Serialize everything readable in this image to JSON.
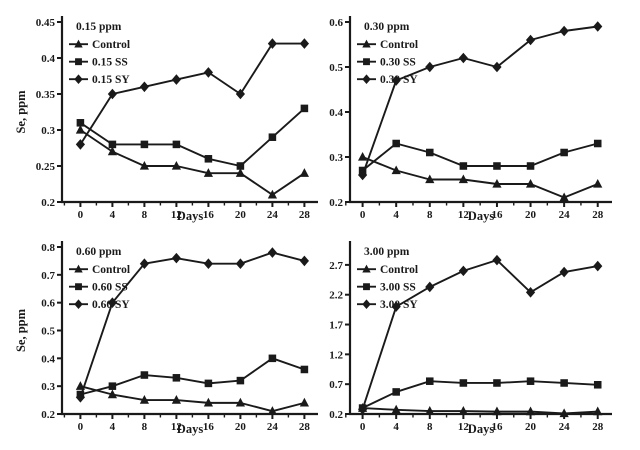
{
  "figure": {
    "name": "Se accumulation in treatments over time",
    "background_color": "#ffffff",
    "ink_color": "#1a1a1a",
    "shared_xlabel": "Days",
    "shared_ylabel": "Se, ppm"
  },
  "chart_data": [
    {
      "panel": "top-left",
      "type": "line",
      "title": "0.15 ppm",
      "xlabel": "Days",
      "ylabel": "Se, ppm",
      "x": [
        0,
        4,
        8,
        12,
        16,
        20,
        24,
        28
      ],
      "xticks": [
        "0",
        "4",
        "8",
        "12",
        "16",
        "20",
        "24",
        "28"
      ],
      "yticks": [
        "0.2",
        "0.25",
        "0.3",
        "0.35",
        "0.4",
        "0.45"
      ],
      "ylim": [
        0.2,
        0.45
      ],
      "grid": false,
      "legend_position": "inside-top-left",
      "series": [
        {
          "name": "Control",
          "marker": "triangle",
          "values": [
            0.3,
            0.27,
            0.25,
            0.25,
            0.24,
            0.24,
            0.21,
            0.24
          ]
        },
        {
          "name": "0.15 SS",
          "marker": "square",
          "values": [
            0.31,
            0.28,
            0.28,
            0.28,
            0.26,
            0.25,
            0.29,
            0.33
          ]
        },
        {
          "name": "0.15 SY",
          "marker": "diamond",
          "values": [
            0.28,
            0.35,
            0.36,
            0.37,
            0.38,
            0.35,
            0.42,
            0.42
          ]
        }
      ]
    },
    {
      "panel": "top-right",
      "type": "line",
      "title": "0.30 ppm",
      "xlabel": "Days",
      "ylabel": "",
      "x": [
        0,
        4,
        8,
        12,
        16,
        20,
        24,
        28
      ],
      "xticks": [
        "0",
        "4",
        "8",
        "12",
        "16",
        "20",
        "24",
        "28"
      ],
      "yticks": [
        "0.2",
        "0.3",
        "0.4",
        "0.5",
        "0.6"
      ],
      "ylim": [
        0.2,
        0.6
      ],
      "grid": false,
      "legend_position": "inside-top-left",
      "series": [
        {
          "name": "Control",
          "marker": "triangle",
          "values": [
            0.3,
            0.27,
            0.25,
            0.25,
            0.24,
            0.24,
            0.21,
            0.24
          ]
        },
        {
          "name": "0.30 SS",
          "marker": "square",
          "values": [
            0.27,
            0.33,
            0.31,
            0.28,
            0.28,
            0.28,
            0.31,
            0.33
          ]
        },
        {
          "name": "0.30 SY",
          "marker": "diamond",
          "values": [
            0.26,
            0.47,
            0.5,
            0.52,
            0.5,
            0.56,
            0.58,
            0.59
          ]
        }
      ]
    },
    {
      "panel": "bottom-left",
      "type": "line",
      "title": "0.60 ppm",
      "xlabel": "Days",
      "ylabel": "Se, ppm",
      "x": [
        0,
        4,
        8,
        12,
        16,
        20,
        24,
        28
      ],
      "xticks": [
        "0",
        "4",
        "8",
        "12",
        "16",
        "20",
        "24",
        "28"
      ],
      "yticks": [
        "0.2",
        "0.3",
        "0.4",
        "0.5",
        "0.6",
        "0.7",
        "0.8"
      ],
      "ylim": [
        0.2,
        0.8
      ],
      "grid": false,
      "legend_position": "inside-top-left",
      "series": [
        {
          "name": "Control",
          "marker": "triangle",
          "values": [
            0.3,
            0.27,
            0.25,
            0.25,
            0.24,
            0.24,
            0.21,
            0.24
          ]
        },
        {
          "name": "0.60 SS",
          "marker": "square",
          "values": [
            0.27,
            0.3,
            0.34,
            0.33,
            0.31,
            0.32,
            0.4,
            0.36
          ]
        },
        {
          "name": "0.60 SY",
          "marker": "diamond",
          "values": [
            0.26,
            0.6,
            0.74,
            0.76,
            0.74,
            0.74,
            0.78,
            0.75
          ]
        }
      ]
    },
    {
      "panel": "bottom-right",
      "type": "line",
      "title": "3.00 ppm",
      "xlabel": "Days",
      "ylabel": "",
      "x": [
        0,
        4,
        8,
        12,
        16,
        20,
        24,
        28
      ],
      "xticks": [
        "0",
        "4",
        "8",
        "12",
        "16",
        "20",
        "24",
        "28"
      ],
      "yticks": [
        "0.2",
        "0.7",
        "1.2",
        "1.7",
        "2.2",
        "2.7"
      ],
      "ylim": [
        0.2,
        3.0
      ],
      "grid": false,
      "legend_position": "inside-top-left",
      "series": [
        {
          "name": "Control",
          "marker": "triangle",
          "values": [
            0.3,
            0.27,
            0.25,
            0.25,
            0.24,
            0.24,
            0.21,
            0.24
          ]
        },
        {
          "name": "3.00 SS",
          "marker": "square",
          "values": [
            0.3,
            0.57,
            0.75,
            0.72,
            0.72,
            0.75,
            0.72,
            0.69
          ]
        },
        {
          "name": "3.00 SY",
          "marker": "diamond",
          "values": [
            0.28,
            2.0,
            2.33,
            2.6,
            2.78,
            2.24,
            2.58,
            2.68
          ]
        }
      ]
    }
  ]
}
